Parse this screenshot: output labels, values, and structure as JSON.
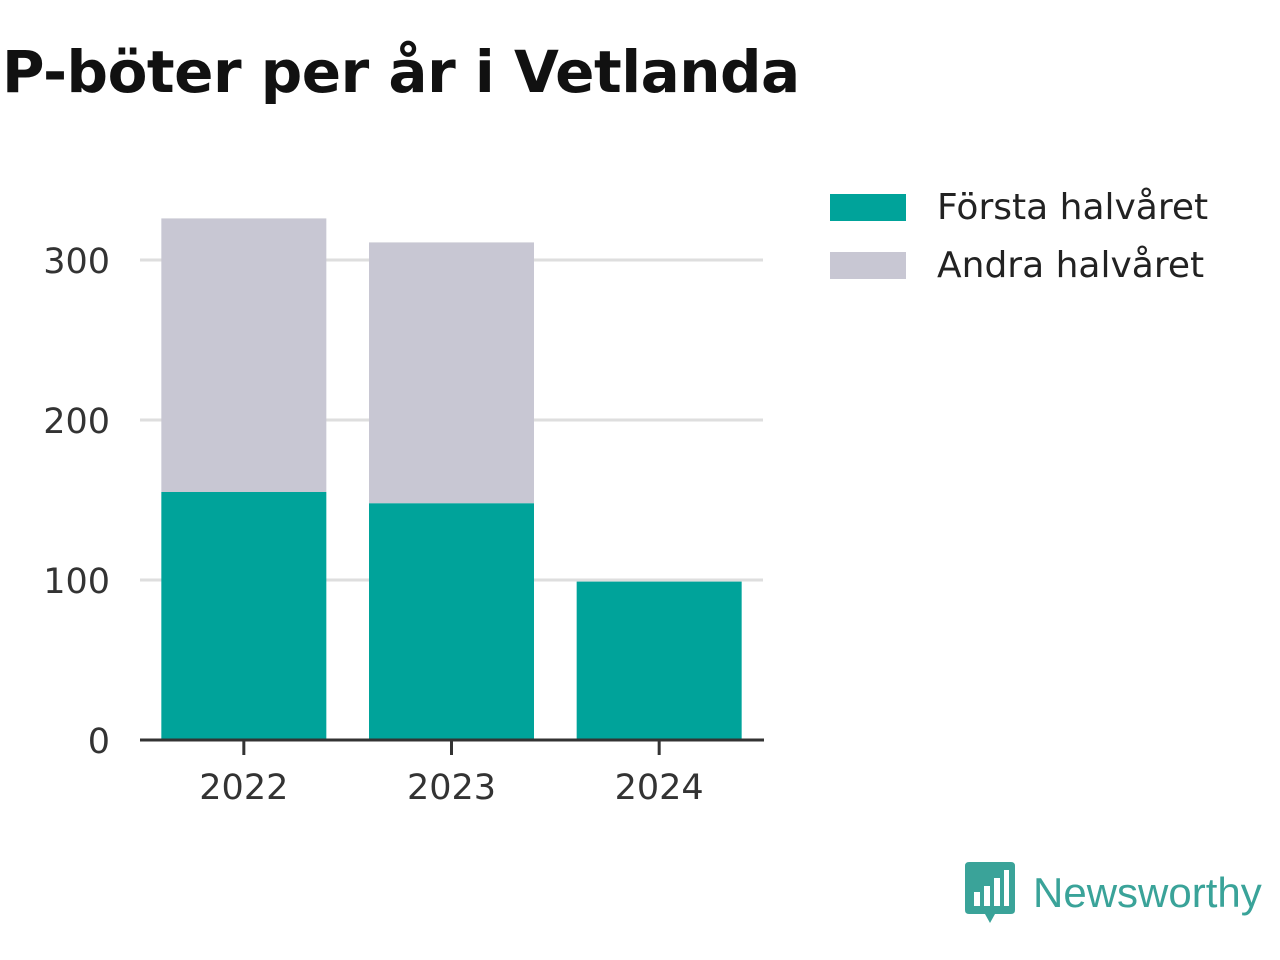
{
  "chart_data": {
    "type": "bar",
    "stacked": true,
    "title": "P-böter per år i Vetlanda",
    "categories": [
      "2022",
      "2023",
      "2024"
    ],
    "series": [
      {
        "name": "Första halvåret",
        "values": [
          155,
          148,
          99
        ],
        "color": "#00a39a"
      },
      {
        "name": "Andra halvåret",
        "values": [
          171,
          163,
          0
        ],
        "color": "#c8c7d3"
      }
    ],
    "yticks": [
      "0",
      "100",
      "200",
      "300"
    ],
    "ylim": [
      0,
      330
    ],
    "grid": true,
    "legend": "right"
  },
  "brand": {
    "label": "Newsworthy",
    "icon": "newsworthy-logo-icon",
    "color": "#3aa399"
  }
}
